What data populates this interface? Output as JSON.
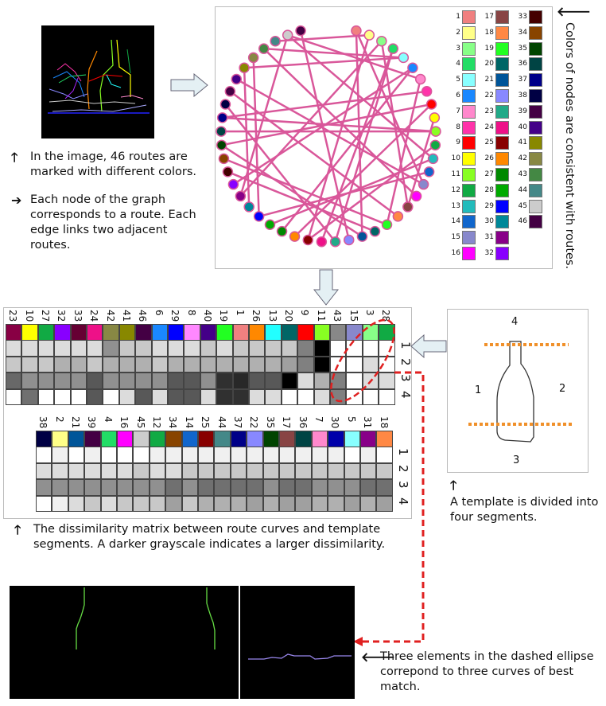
{
  "captions": {
    "routes_marked": "In the image, 46 routes are marked with different colors.",
    "node_route": "Each node of the graph corresponds to a route. Each edge links two adjacent routes.",
    "colors_consistent": "Colors of nodes are consistent with routes.",
    "template_divided": "A template is divided into four segments.",
    "dissimilarity": "The dissimilarity matrix between route curves and template segments. A darker grayscale indicates a larger dissimilarity.",
    "three_elements": "Three elements in the dashed ellipse correpond to three curves of best match."
  },
  "arrows": {
    "up": "🡑",
    "right": "➔",
    "left": "🡐"
  },
  "template_labels": {
    "top": "4",
    "left": "1",
    "right": "2",
    "bottom": "3"
  },
  "colors": {
    "edge": "#d9579a",
    "dashed": "#e02020",
    "template_line": "#f0902a"
  },
  "legend": [
    {
      "n": "1",
      "c": "#f08080"
    },
    {
      "n": "2",
      "c": "#ffff88"
    },
    {
      "n": "3",
      "c": "#88ff88"
    },
    {
      "n": "4",
      "c": "#22dd66"
    },
    {
      "n": "5",
      "c": "#88ffff"
    },
    {
      "n": "6",
      "c": "#1a88ff"
    },
    {
      "n": "7",
      "c": "#ff88cc"
    },
    {
      "n": "8",
      "c": "#ff33aa"
    },
    {
      "n": "9",
      "c": "#ff0000"
    },
    {
      "n": "10",
      "c": "#ffff00"
    },
    {
      "n": "11",
      "c": "#88ff22"
    },
    {
      "n": "12",
      "c": "#11aa44"
    },
    {
      "n": "13",
      "c": "#22bbbb"
    },
    {
      "n": "14",
      "c": "#1166cc"
    },
    {
      "n": "15",
      "c": "#8888cc"
    },
    {
      "n": "16",
      "c": "#ff00ff"
    },
    {
      "n": "17",
      "c": "#884444"
    },
    {
      "n": "18",
      "c": "#ff8844"
    },
    {
      "n": "19",
      "c": "#22ff22"
    },
    {
      "n": "20",
      "c": "#006666"
    },
    {
      "n": "21",
      "c": "#005599"
    },
    {
      "n": "22",
      "c": "#8888ff"
    },
    {
      "n": "23",
      "c": "#22aa88"
    },
    {
      "n": "24",
      "c": "#ee1188"
    },
    {
      "n": "25",
      "c": "#880000"
    },
    {
      "n": "26",
      "c": "#ff8800"
    },
    {
      "n": "27",
      "c": "#008800"
    },
    {
      "n": "28",
      "c": "#00aa00"
    },
    {
      "n": "29",
      "c": "#0000ff"
    },
    {
      "n": "30",
      "c": "#008899"
    },
    {
      "n": "31",
      "c": "#880088"
    },
    {
      "n": "32",
      "c": "#8800ff"
    },
    {
      "n": "33",
      "c": "#440000"
    },
    {
      "n": "34",
      "c": "#884400"
    },
    {
      "n": "35",
      "c": "#004400"
    },
    {
      "n": "36",
      "c": "#004444"
    },
    {
      "n": "37",
      "c": "#000088"
    },
    {
      "n": "38",
      "c": "#000044"
    },
    {
      "n": "39",
      "c": "#440044"
    },
    {
      "n": "40",
      "c": "#440088"
    },
    {
      "n": "41",
      "c": "#888800"
    },
    {
      "n": "42",
      "c": "#888844"
    },
    {
      "n": "43",
      "c": "#448844"
    },
    {
      "n": "44",
      "c": "#448888"
    },
    {
      "n": "45",
      "c": "#cccccc"
    },
    {
      "n": "46",
      "c": "#440044"
    }
  ],
  "matrix_top": {
    "headers": [
      "23",
      "10",
      "27",
      "32",
      "33",
      "24",
      "42",
      "41",
      "46",
      "6",
      "29",
      "8",
      "40",
      "19",
      "1",
      "26",
      "13",
      "20",
      "9",
      "11",
      "43",
      "15",
      "3",
      "28"
    ],
    "swatches": [
      "#880044",
      "#ffff00",
      "#11aa44",
      "#8800ff",
      "#660033",
      "#ee1188",
      "#888844",
      "#888800",
      "#440044",
      "#1a88ff",
      "#0000ff",
      "#ff88ff",
      "#440088",
      "#22ff22",
      "#f08080",
      "#ff8800",
      "#22ffff",
      "#006666",
      "#ff0000",
      "#88ff22",
      "#888888",
      "#8888cc",
      "#88ff88",
      "#11aa44"
    ],
    "rows": [
      [
        "#dcdcdc",
        "#dcdcdc",
        "#dcdcdc",
        "#dcdcdc",
        "#dcdcdc",
        "#dcdcdc",
        "#909090",
        "#c8c8c8",
        "#c8c8c8",
        "#dcdcdc",
        "#dcdcdc",
        "#dcdcdc",
        "#c8c8c8",
        "#dcdcdc",
        "#c8c8c8",
        "#c8c8c8",
        "#c8c8c8",
        "#c8c8c8",
        "#808080",
        "#000000",
        "#ffffff",
        "#ffffff",
        "#ffffff",
        "#ffffff"
      ],
      [
        "#c8c8c8",
        "#c8c8c8",
        "#c8c8c8",
        "#b0b0b0",
        "#b0b0b0",
        "#c8c8c8",
        "#b0b0b0",
        "#b0b0b0",
        "#b0b0b0",
        "#c8c8c8",
        "#b0b0b0",
        "#b0b0b0",
        "#b0b0b0",
        "#b0b0b0",
        "#b0b0b0",
        "#b0b0b0",
        "#b0b0b0",
        "#a0a0a0",
        "#808080",
        "#000000",
        "#ffffff",
        "#ffffff",
        "#dcdcdc",
        "#ffffff"
      ],
      [
        "#686868",
        "#909090",
        "#909090",
        "#909090",
        "#909090",
        "#585858",
        "#909090",
        "#909090",
        "#909090",
        "#909090",
        "#585858",
        "#585858",
        "#909090",
        "#303030",
        "#282828",
        "#585858",
        "#585858",
        "#000000",
        "#dcdcdc",
        "#b0b0b0",
        "#808080",
        "#ffffff",
        "#dcdcdc",
        "#dcdcdc"
      ],
      [
        "#ffffff",
        "#707070",
        "#ffffff",
        "#ffffff",
        "#ffffff",
        "#585858",
        "#ffffff",
        "#dcdcdc",
        "#585858",
        "#dcdcdc",
        "#585858",
        "#585858",
        "#dcdcdc",
        "#303030",
        "#303030",
        "#dcdcdc",
        "#dcdcdc",
        "#ffffff",
        "#ffffff",
        "#dcdcdc",
        "#808080",
        "#ffffff",
        "#ffffff",
        "#ffffff"
      ]
    ],
    "row_labels": [
      "1",
      "2",
      "3",
      "4"
    ]
  },
  "matrix_bottom": {
    "headers": [
      "38",
      "2",
      "21",
      "39",
      "4",
      "16",
      "45",
      "12",
      "34",
      "14",
      "25",
      "44",
      "37",
      "22",
      "35",
      "17",
      "36",
      "7",
      "30",
      "5",
      "31",
      "18"
    ],
    "swatches": [
      "#000044",
      "#ffff88",
      "#005599",
      "#440044",
      "#22dd66",
      "#ff00ff",
      "#cccccc",
      "#11aa44",
      "#884400",
      "#1166cc",
      "#880000",
      "#448888",
      "#000088",
      "#8888ff",
      "#004400",
      "#884444",
      "#004444",
      "#ff88cc",
      "#0000aa",
      "#88ffff",
      "#880088",
      "#ff8844"
    ],
    "rows": [
      [
        "#ffffff",
        "#f0f0f0",
        "#ffffff",
        "#f0f0f0",
        "#ffffff",
        "#ffffff",
        "#ffffff",
        "#f0f0f0",
        "#f0f0f0",
        "#f0f0f0",
        "#f0f0f0",
        "#f0f0f0",
        "#f0f0f0",
        "#f0f0f0",
        "#f0f0f0",
        "#f0f0f0",
        "#f0f0f0",
        "#f0f0f0",
        "#f0f0f0",
        "#ffffff",
        "#f0f0f0",
        "#ffffff"
      ],
      [
        "#dcdcdc",
        "#dcdcdc",
        "#dcdcdc",
        "#dcdcdc",
        "#dcdcdc",
        "#dcdcdc",
        "#c8c8c8",
        "#dcdcdc",
        "#dcdcdc",
        "#c8c8c8",
        "#c8c8c8",
        "#c8c8c8",
        "#c8c8c8",
        "#c8c8c8",
        "#c8c8c8",
        "#c8c8c8",
        "#c8c8c8",
        "#c8c8c8",
        "#c8c8c8",
        "#c8c8c8",
        "#c8c8c8",
        "#c8c8c8"
      ],
      [
        "#909090",
        "#909090",
        "#909090",
        "#909090",
        "#909090",
        "#909090",
        "#909090",
        "#909090",
        "#707070",
        "#909090",
        "#707070",
        "#707070",
        "#707070",
        "#707070",
        "#909090",
        "#707070",
        "#707070",
        "#909090",
        "#909090",
        "#909090",
        "#707070",
        "#707070"
      ],
      [
        "#ffffff",
        "#f0f0f0",
        "#dcdcdc",
        "#c8c8c8",
        "#dcdcdc",
        "#c8c8c8",
        "#c8c8c8",
        "#c8c8c8",
        "#a0a0a0",
        "#c8c8c8",
        "#b0b0b0",
        "#b0b0b0",
        "#b0b0b0",
        "#a0a0a0",
        "#b0b0b0",
        "#a0a0a0",
        "#a0a0a0",
        "#b0b0b0",
        "#b0b0b0",
        "#a0a0a0",
        "#b0b0b0",
        "#a0a0a0"
      ]
    ],
    "row_labels": [
      "1",
      "2",
      "3",
      "4"
    ]
  }
}
